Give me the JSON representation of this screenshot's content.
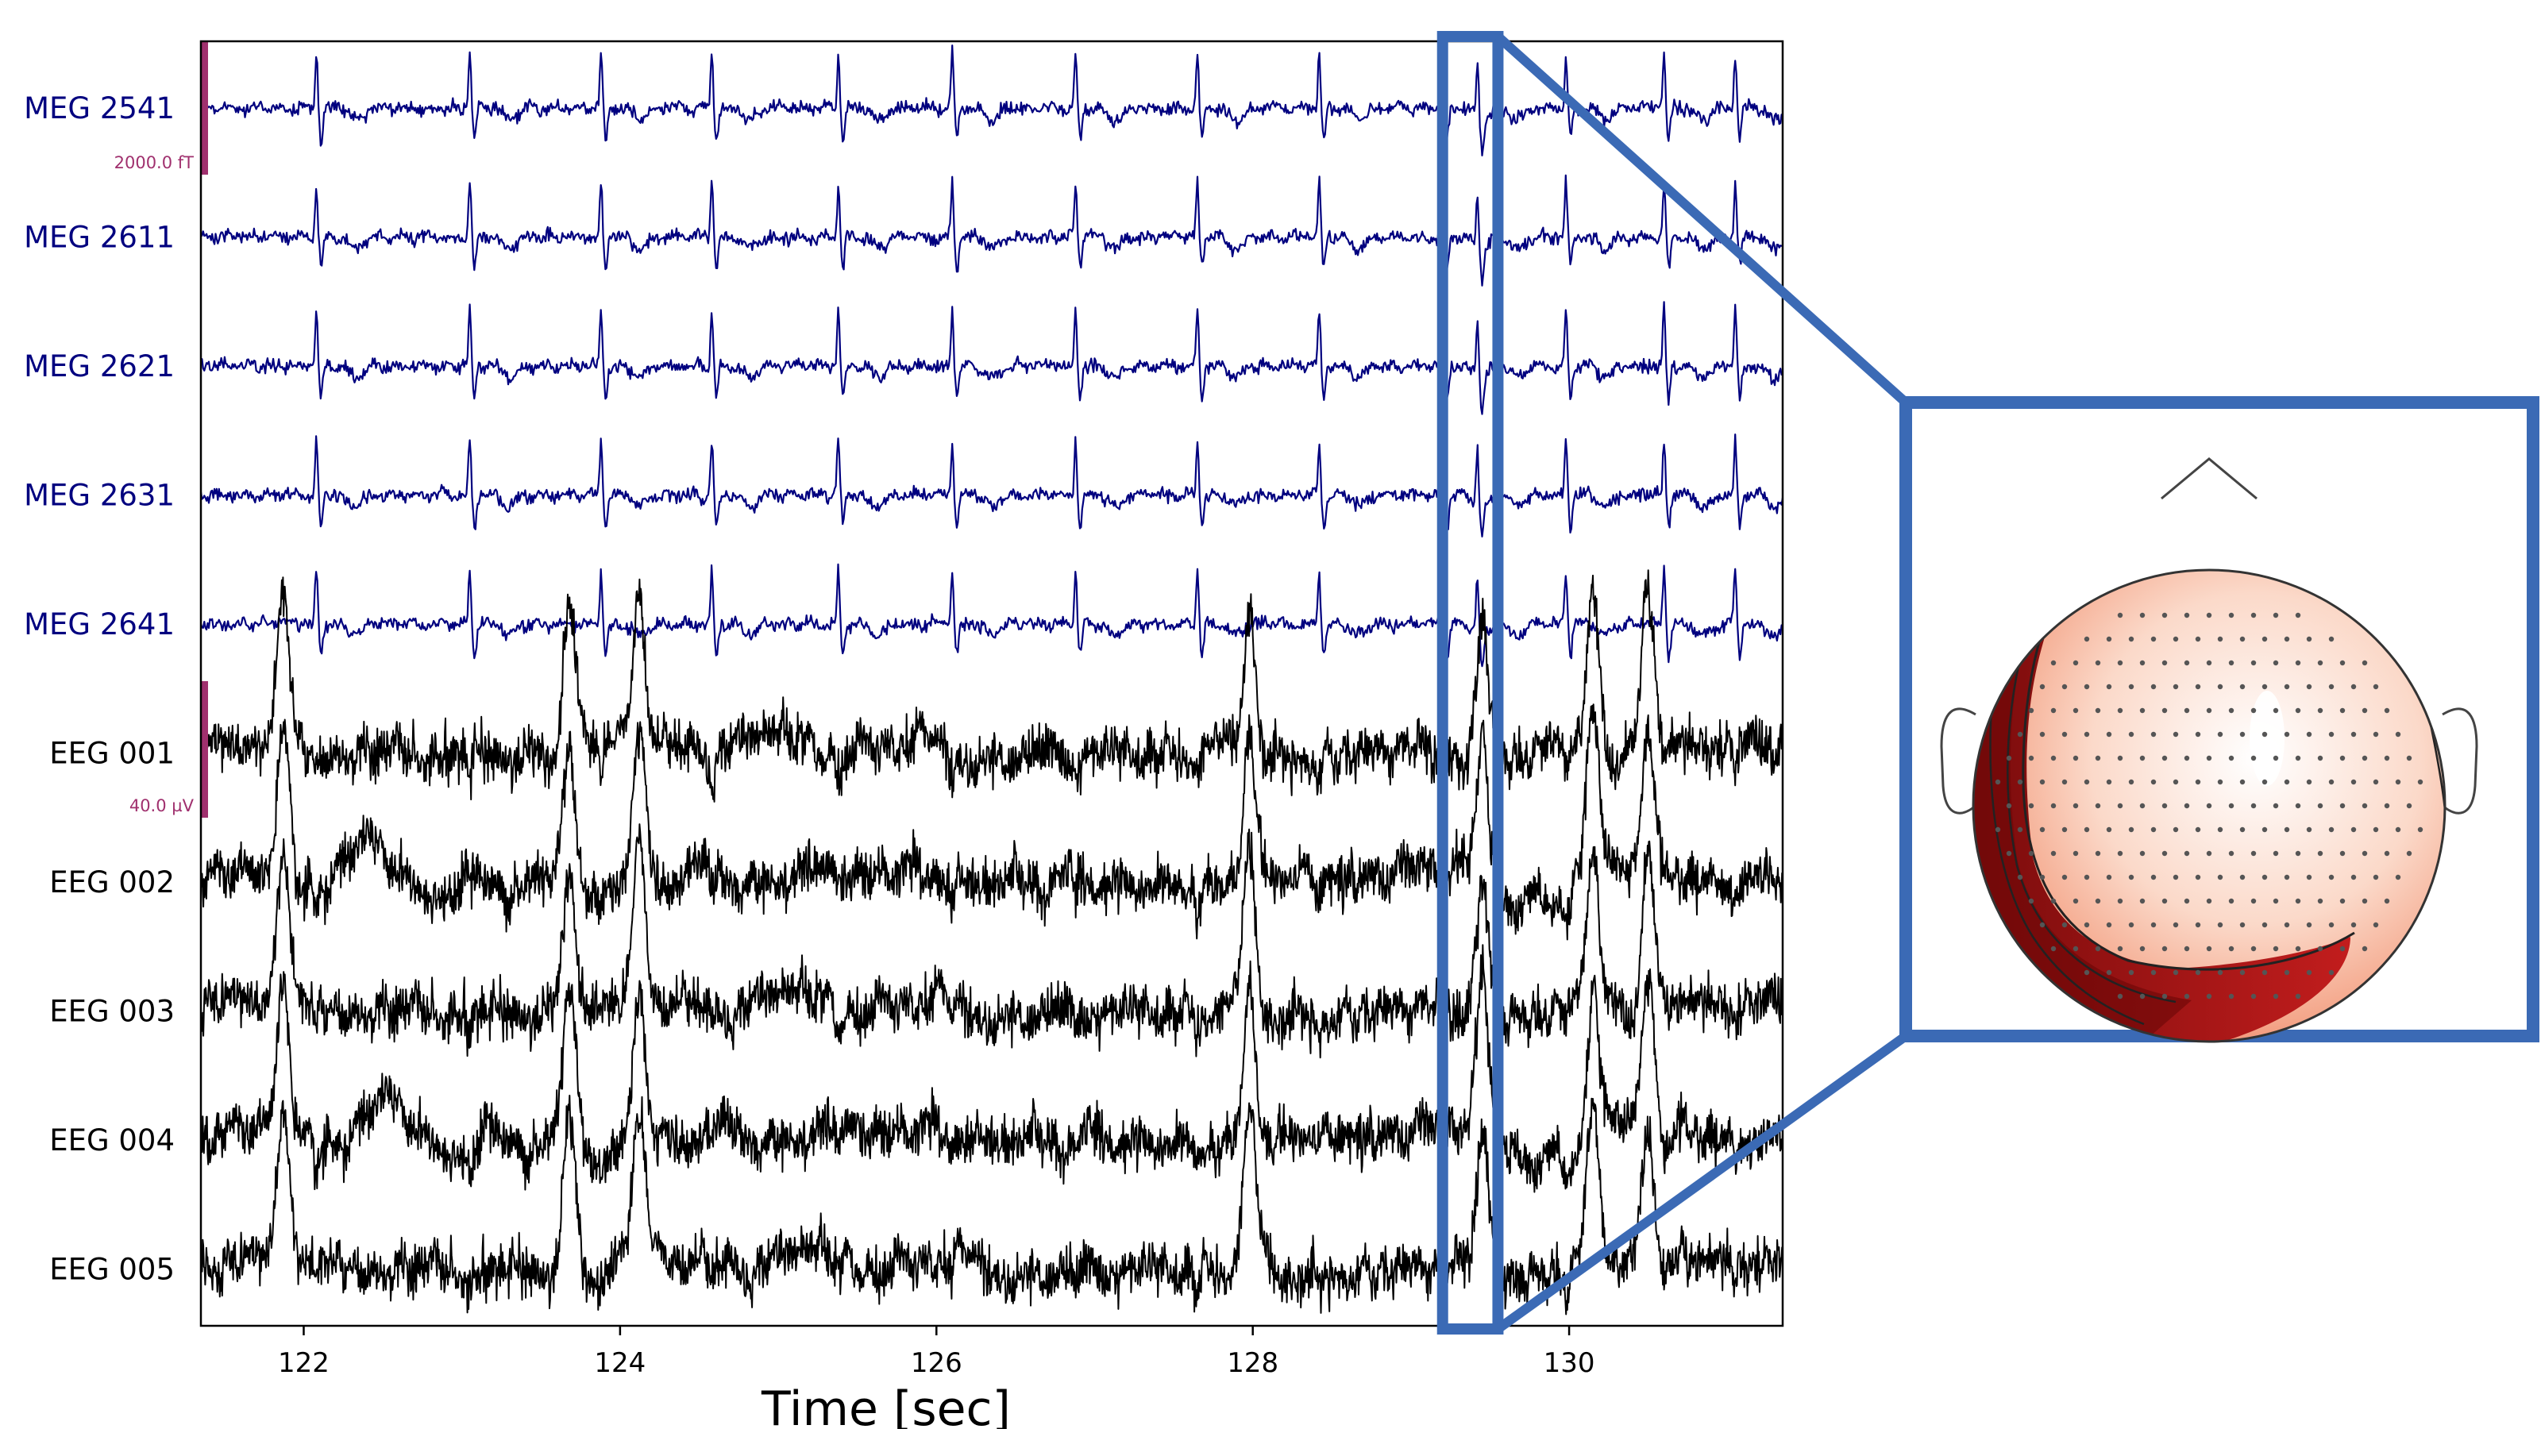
{
  "chart_data": {
    "type": "line",
    "title": "",
    "xlabel": "Time [sec]",
    "ylabel": "",
    "xlim": [
      121.35,
      131.35
    ],
    "xticks": [
      122,
      124,
      126,
      128,
      130
    ],
    "grid": false,
    "legend": "none",
    "channels": [
      {
        "name": "MEG 2541",
        "type": "MEG"
      },
      {
        "name": "MEG 2611",
        "type": "MEG"
      },
      {
        "name": "MEG 2621",
        "type": "MEG"
      },
      {
        "name": "MEG 2631",
        "type": "MEG"
      },
      {
        "name": "MEG 2641",
        "type": "MEG"
      },
      {
        "name": "EEG 001",
        "type": "EEG"
      },
      {
        "name": "EEG 002",
        "type": "EEG"
      },
      {
        "name": "EEG 003",
        "type": "EEG"
      },
      {
        "name": "EEG 004",
        "type": "EEG"
      },
      {
        "name": "EEG 005",
        "type": "EEG"
      }
    ],
    "heartbeat_peaks_sec": [
      122.08,
      123.05,
      123.88,
      124.58,
      125.38,
      126.1,
      126.88,
      127.65,
      128.42,
      129.2,
      129.42,
      129.98,
      130.6,
      131.05
    ],
    "eeg_artifact_peaks_sec": [
      121.87,
      123.68,
      124.12,
      127.98,
      129.45,
      130.15,
      130.5
    ],
    "scale_bars": [
      {
        "label": "2000.0 fT",
        "channel_group": "MEG"
      },
      {
        "label": "40.0 µV",
        "channel_group": "EEG"
      }
    ],
    "highlight_window_sec": [
      129.2,
      129.55
    ],
    "colors": {
      "meg": "#00007f",
      "eeg": "#000000",
      "scale": "#a0306e",
      "highlight": "#3b6ab5"
    }
  },
  "topomap": {
    "description_colormap": "Reds",
    "colors": {
      "high": "#7a0c0c",
      "mid": "#e9694a",
      "low": "#ffffff"
    }
  }
}
